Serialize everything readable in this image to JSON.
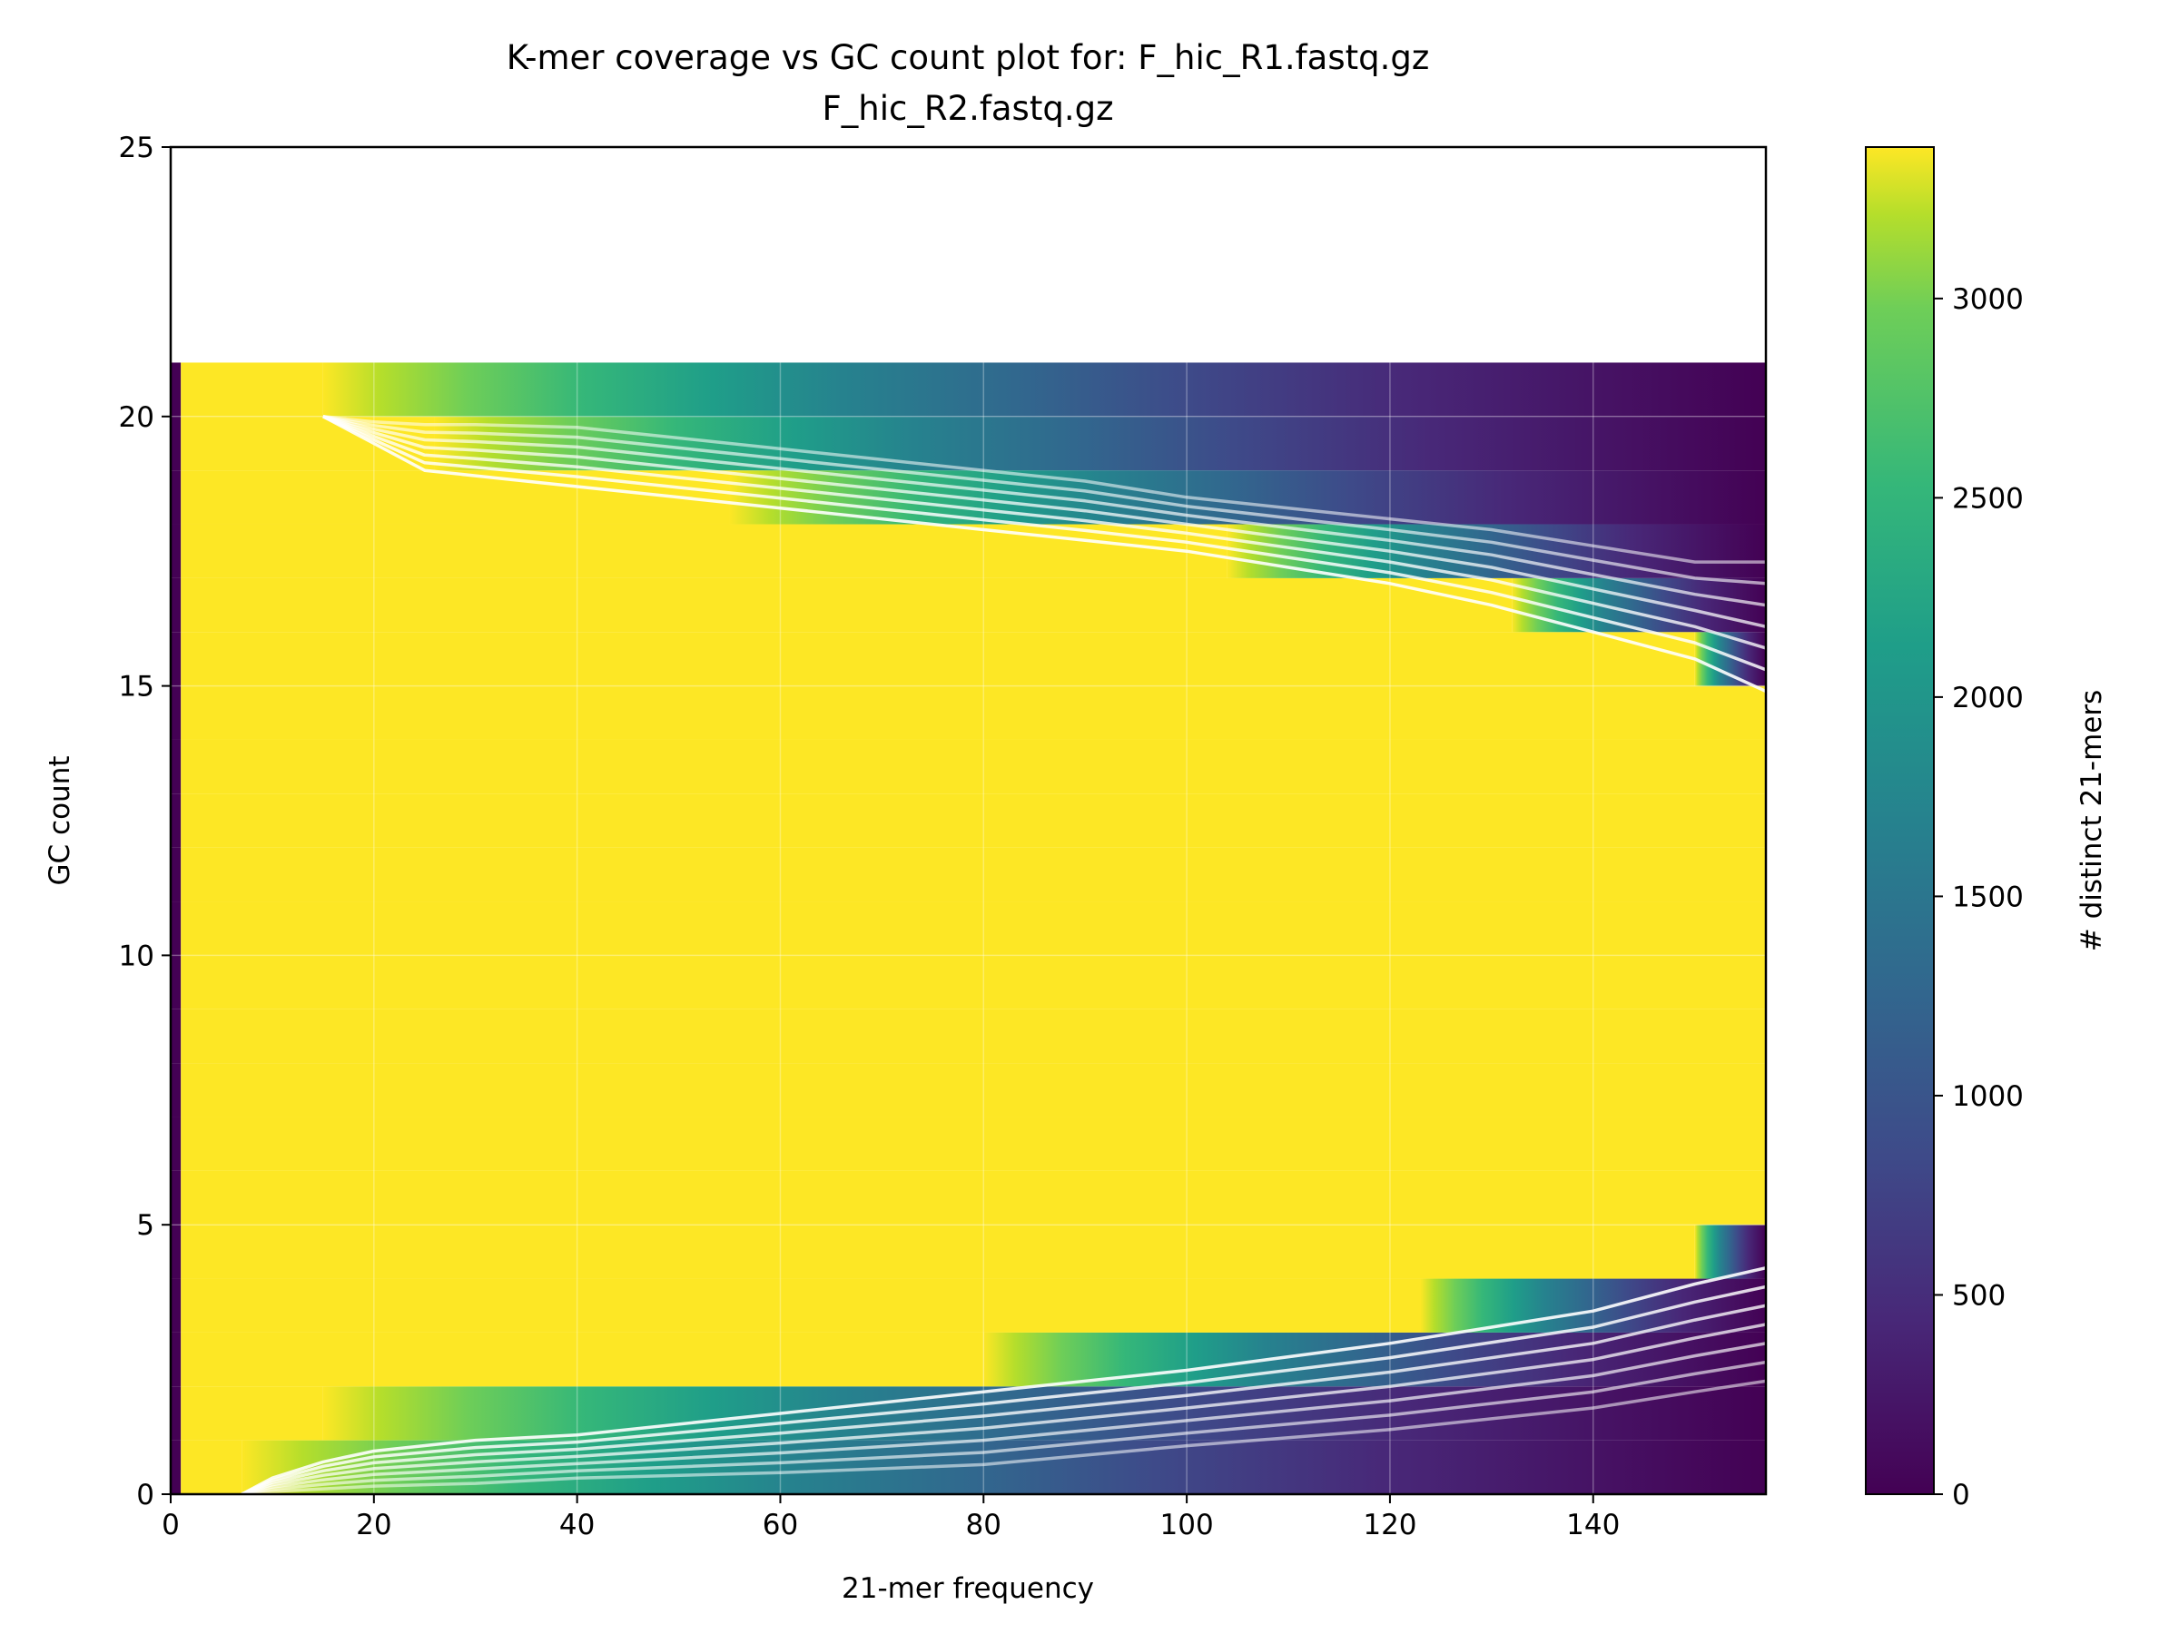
{
  "chart_data": {
    "type": "heatmap",
    "title": "K-mer coverage vs GC count plot for: F_hic_R1.fastq.gz\nF_hic_R2.fastq.gz",
    "title_lines": [
      "K-mer coverage vs GC count plot for: F_hic_R1.fastq.gz",
      "F_hic_R2.fastq.gz"
    ],
    "xlabel": "21-mer frequency",
    "ylabel": "GC count",
    "xlim": [
      0,
      157
    ],
    "ylim": [
      0,
      25
    ],
    "x_ticks": [
      0,
      20,
      40,
      60,
      80,
      100,
      120,
      140
    ],
    "y_ticks": [
      0,
      5,
      10,
      15,
      20,
      25
    ],
    "colormap": "viridis",
    "grid": true,
    "colorbar": {
      "label": "# distinct 21-mers",
      "range": [
        0,
        3380
      ],
      "ticks": [
        0,
        500,
        1000,
        1500,
        2000,
        2500,
        3000
      ]
    },
    "heatmap": {
      "gc_rows": [
        0,
        1,
        2,
        3,
        4,
        5,
        6,
        7,
        8,
        9,
        10,
        11,
        12,
        13,
        14,
        15,
        16,
        17,
        18,
        19,
        20
      ],
      "saturated_range_by_gc": [
        {
          "gc": 0,
          "x_from": 1,
          "x_to": 7
        },
        {
          "gc": 1,
          "x_from": 1,
          "x_to": 15
        },
        {
          "gc": 2,
          "x_from": 1,
          "x_to": 80
        },
        {
          "gc": 3,
          "x_from": 1,
          "x_to": 123
        },
        {
          "gc": 4,
          "x_from": 1,
          "x_to": 150
        },
        {
          "gc": 5,
          "x_from": 1,
          "x_to": 157
        },
        {
          "gc": 15,
          "x_from": 1,
          "x_to": 150
        },
        {
          "gc": 16,
          "x_from": 1,
          "x_to": 132
        },
        {
          "gc": 17,
          "x_from": 1,
          "x_to": 104
        },
        {
          "gc": 18,
          "x_from": 1,
          "x_to": 55
        },
        {
          "gc": 19,
          "x_from": 1,
          "x_to": 26
        },
        {
          "gc": 20,
          "x_from": 1,
          "x_to": 15
        }
      ]
    },
    "contours": {
      "upper": {
        "x": [
          15,
          20,
          25,
          30,
          40,
          50,
          60,
          70,
          80,
          90,
          100,
          110,
          120,
          130,
          140,
          150,
          157
        ],
        "y_outer": [
          20.0,
          19.9,
          19.85,
          19.85,
          19.8,
          19.6,
          19.4,
          19.2,
          19.0,
          18.8,
          18.5,
          18.3,
          18.1,
          17.9,
          17.6,
          17.3,
          17.3
        ],
        "y_inner": [
          20.0,
          19.5,
          19.0,
          18.9,
          18.7,
          18.5,
          18.3,
          18.1,
          17.9,
          17.7,
          17.5,
          17.2,
          16.9,
          16.5,
          16.0,
          15.5,
          14.9
        ]
      },
      "lower": {
        "x": [
          7,
          10,
          15,
          20,
          30,
          40,
          60,
          80,
          100,
          120,
          140,
          150,
          157
        ],
        "y_outer": [
          0.0,
          0.05,
          0.1,
          0.15,
          0.2,
          0.3,
          0.4,
          0.55,
          0.9,
          1.2,
          1.6,
          1.9,
          2.1
        ],
        "y_inner": [
          0.0,
          0.3,
          0.6,
          0.8,
          1.0,
          1.1,
          1.5,
          1.9,
          2.3,
          2.8,
          3.4,
          3.9,
          4.2
        ]
      }
    }
  }
}
